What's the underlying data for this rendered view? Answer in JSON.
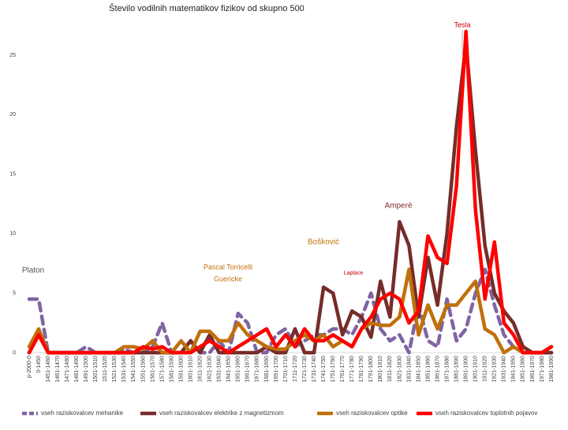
{
  "chart_data": {
    "type": "line",
    "title": "Število vodilnih matematikov fizikov od skupno 500",
    "categories": [
      "p-2000-0",
      "0-1450",
      "1451-1460",
      "1461-1470",
      "1471-1480",
      "1481-1490",
      "1491-1500",
      "1501-1510",
      "1511-1520",
      "1521-1530",
      "1531-1540",
      "1541-1550",
      "1551-1560",
      "1561-1570",
      "1571-1580",
      "1581-1590",
      "1591-1600",
      "1601-1610",
      "1611-1620",
      "1621-1630",
      "1631-1640",
      "1641-1650",
      "1651-1660",
      "1661-1670",
      "1671-1680",
      "1681-1690",
      "1691-1700",
      "1701-1710",
      "1711-1720",
      "1721-1730",
      "1731-1740",
      "1741-1750",
      "1751-1760",
      "1761-1770",
      "1771-1780",
      "1781-1790",
      "1791-1800",
      "1801-1810",
      "1811-1820",
      "1821-1830",
      "1831-1840",
      "1841-1850",
      "1851-1860",
      "1861-1870",
      "1871-1880",
      "1881-1890",
      "1891-1900",
      "1901-1910",
      "1911-1920",
      "1921-1930",
      "1931-1940",
      "1941-1950",
      "1951-1960",
      "1961-1970",
      "1971-1980",
      "1981-1990"
    ],
    "series": [
      {
        "name": "vseh raziskovalcev mehanike",
        "color": "#8064a2",
        "dashed": true,
        "values": [
          4.5,
          4.5,
          0,
          0,
          0,
          0,
          0.5,
          0,
          0,
          0,
          0.3,
          0,
          0,
          0.5,
          2.5,
          0,
          0,
          1,
          0,
          0,
          1,
          0,
          3.3,
          2.5,
          0,
          0,
          1.5,
          2,
          0.5,
          1,
          1.5,
          1.5,
          2,
          2,
          1.5,
          3,
          5,
          2,
          1,
          1.5,
          0,
          4,
          1,
          0.5,
          4.5,
          1,
          2,
          5,
          7,
          4,
          1.5,
          0.5,
          0,
          0,
          0,
          0
        ]
      },
      {
        "name": "vseh raziskovalcev elektrike z magnetizmom",
        "color": "#772c2a",
        "dashed": false,
        "values": [
          0,
          1.5,
          0,
          0,
          0,
          0,
          0,
          0,
          0,
          0,
          0,
          0,
          0,
          0,
          0,
          0,
          0,
          1,
          0,
          1.5,
          0,
          0,
          0,
          0,
          0,
          0.5,
          0,
          0,
          2,
          0,
          0,
          5.5,
          5,
          1.5,
          3.5,
          3,
          1.3,
          6,
          3,
          11,
          9,
          3,
          8,
          4,
          10,
          19,
          26,
          17,
          9,
          5,
          3.5,
          2.5,
          0.5,
          0,
          0,
          0
        ]
      },
      {
        "name": "vseh raziskovalcev optike",
        "color": "#c0700a",
        "dashed": false,
        "values": [
          0.5,
          2,
          0,
          0,
          0,
          0,
          0,
          0,
          0,
          0,
          0.5,
          0.5,
          0.3,
          1,
          0,
          0,
          1,
          0,
          1.8,
          1.8,
          1,
          1,
          2.5,
          1.5,
          1,
          0.5,
          0.3,
          0.3,
          1,
          1.5,
          1,
          1.5,
          0.5,
          1,
          0.5,
          2,
          2.5,
          2.3,
          2.3,
          3,
          7,
          1.5,
          4,
          2,
          4,
          4,
          5,
          6,
          2,
          1.5,
          0,
          0.5,
          0,
          0,
          0,
          0.5
        ]
      },
      {
        "name": "vseh raziskovalcev toplotnih pojavov",
        "color": "#ff0000",
        "dashed": false,
        "values": [
          0,
          1.5,
          0,
          0,
          0,
          0,
          0,
          0,
          0,
          0,
          0,
          0,
          0.5,
          0.3,
          0.5,
          0,
          0,
          0,
          0.5,
          1,
          0.5,
          0,
          0.5,
          1,
          1.5,
          2,
          0.5,
          1.5,
          0.5,
          2,
          1,
          1,
          1.5,
          1,
          0.5,
          2,
          3,
          4.5,
          5,
          4.5,
          2.5,
          3.5,
          9.8,
          8,
          7.5,
          14,
          27,
          12,
          4.5,
          9.3,
          2.5,
          1.5,
          0,
          0,
          0,
          0.5
        ]
      }
    ],
    "annotations": [
      "Tesla",
      "Amperè",
      "Bošković",
      "Platon",
      "Pascal Torricelli",
      "Guericke",
      "Laplace"
    ],
    "ylim": [
      0,
      28
    ],
    "yticks": [
      0,
      5,
      10,
      15,
      20,
      25
    ],
    "grid": false,
    "legend": "bottom"
  }
}
